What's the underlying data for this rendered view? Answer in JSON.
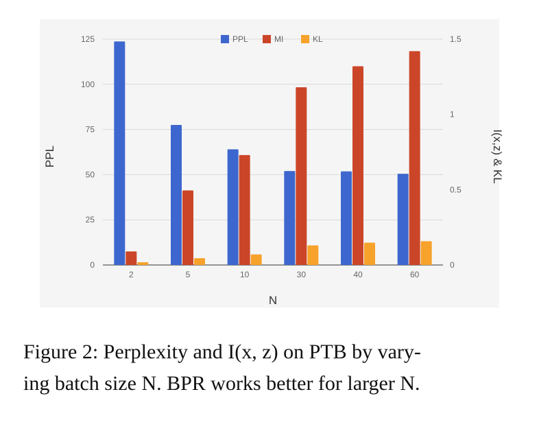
{
  "chart_data": {
    "type": "bar",
    "xlabel": "N",
    "ylabel_left": "PPL",
    "ylabel_right": "I(x,z) & KL",
    "categories": [
      "2",
      "5",
      "10",
      "30",
      "40",
      "60"
    ],
    "y_left": {
      "range": [
        0,
        125
      ],
      "ticks": [
        "0",
        "25",
        "50",
        "75",
        "100",
        "125"
      ]
    },
    "y_right": {
      "range": [
        0,
        1.5
      ],
      "ticks": [
        "0",
        "0.5",
        "1",
        "1.5"
      ]
    },
    "legend": {
      "position": "top-center"
    },
    "grid": true,
    "series": [
      {
        "name": "PPL",
        "axis": "left",
        "color": "#3d67ce",
        "values": [
          123.7,
          77.5,
          64,
          52,
          51.8,
          50.5
        ]
      },
      {
        "name": "MI",
        "axis": "right",
        "color": "#cb4628",
        "values": [
          0.09,
          0.495,
          0.73,
          1.18,
          1.32,
          1.42
        ]
      },
      {
        "name": "KL",
        "axis": "right",
        "color": "#f6a22b",
        "values": [
          0.018,
          0.045,
          0.07,
          0.13,
          0.148,
          0.158
        ]
      }
    ]
  },
  "caption": {
    "line1": "Figure 2: Perplexity and I(x, z) on PTB by vary-",
    "line2": "ing batch size N. BPR works better for larger N."
  }
}
